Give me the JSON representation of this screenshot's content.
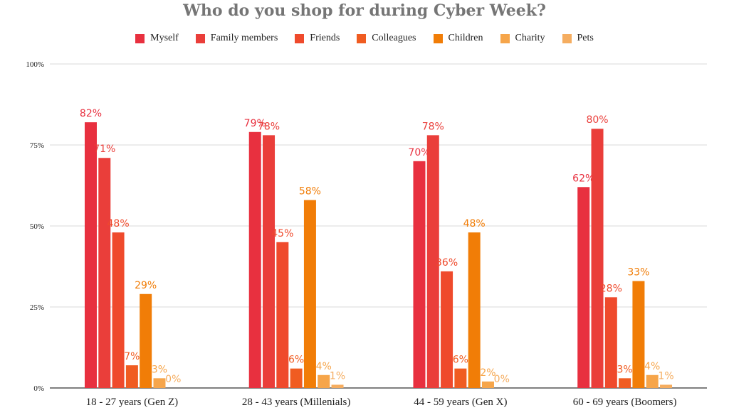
{
  "chart_data": {
    "type": "bar",
    "title": "Who do you shop for during Cyber Week?",
    "categories": [
      "18 - 27 years (Gen Z)",
      "28 - 43 years (Millenials)",
      "44 - 59 years (Gen X)",
      "60 - 69 years (Boomers)"
    ],
    "series": [
      {
        "name": "Myself",
        "color": "#e8303f",
        "values": [
          82,
          79,
          70,
          62
        ]
      },
      {
        "name": "Family members",
        "color": "#ea3e3a",
        "values": [
          71,
          78,
          78,
          80
        ]
      },
      {
        "name": "Friends",
        "color": "#ef4a2c",
        "values": [
          48,
          45,
          36,
          28
        ]
      },
      {
        "name": "Colleagues",
        "color": "#f05c21",
        "values": [
          7,
          6,
          6,
          3
        ]
      },
      {
        "name": "Children",
        "color": "#f17d07",
        "values": [
          29,
          58,
          48,
          33
        ]
      },
      {
        "name": "Charity",
        "color": "#f6a54a",
        "values": [
          3,
          4,
          2,
          4
        ]
      },
      {
        "name": "Pets",
        "color": "#f5ad60",
        "values": [
          0,
          1,
          0,
          1
        ]
      }
    ],
    "ylim": [
      0,
      100
    ],
    "yticks": [
      "0%",
      "25%",
      "50%",
      "75%",
      "100%"
    ],
    "grid": true,
    "legend": "top"
  }
}
